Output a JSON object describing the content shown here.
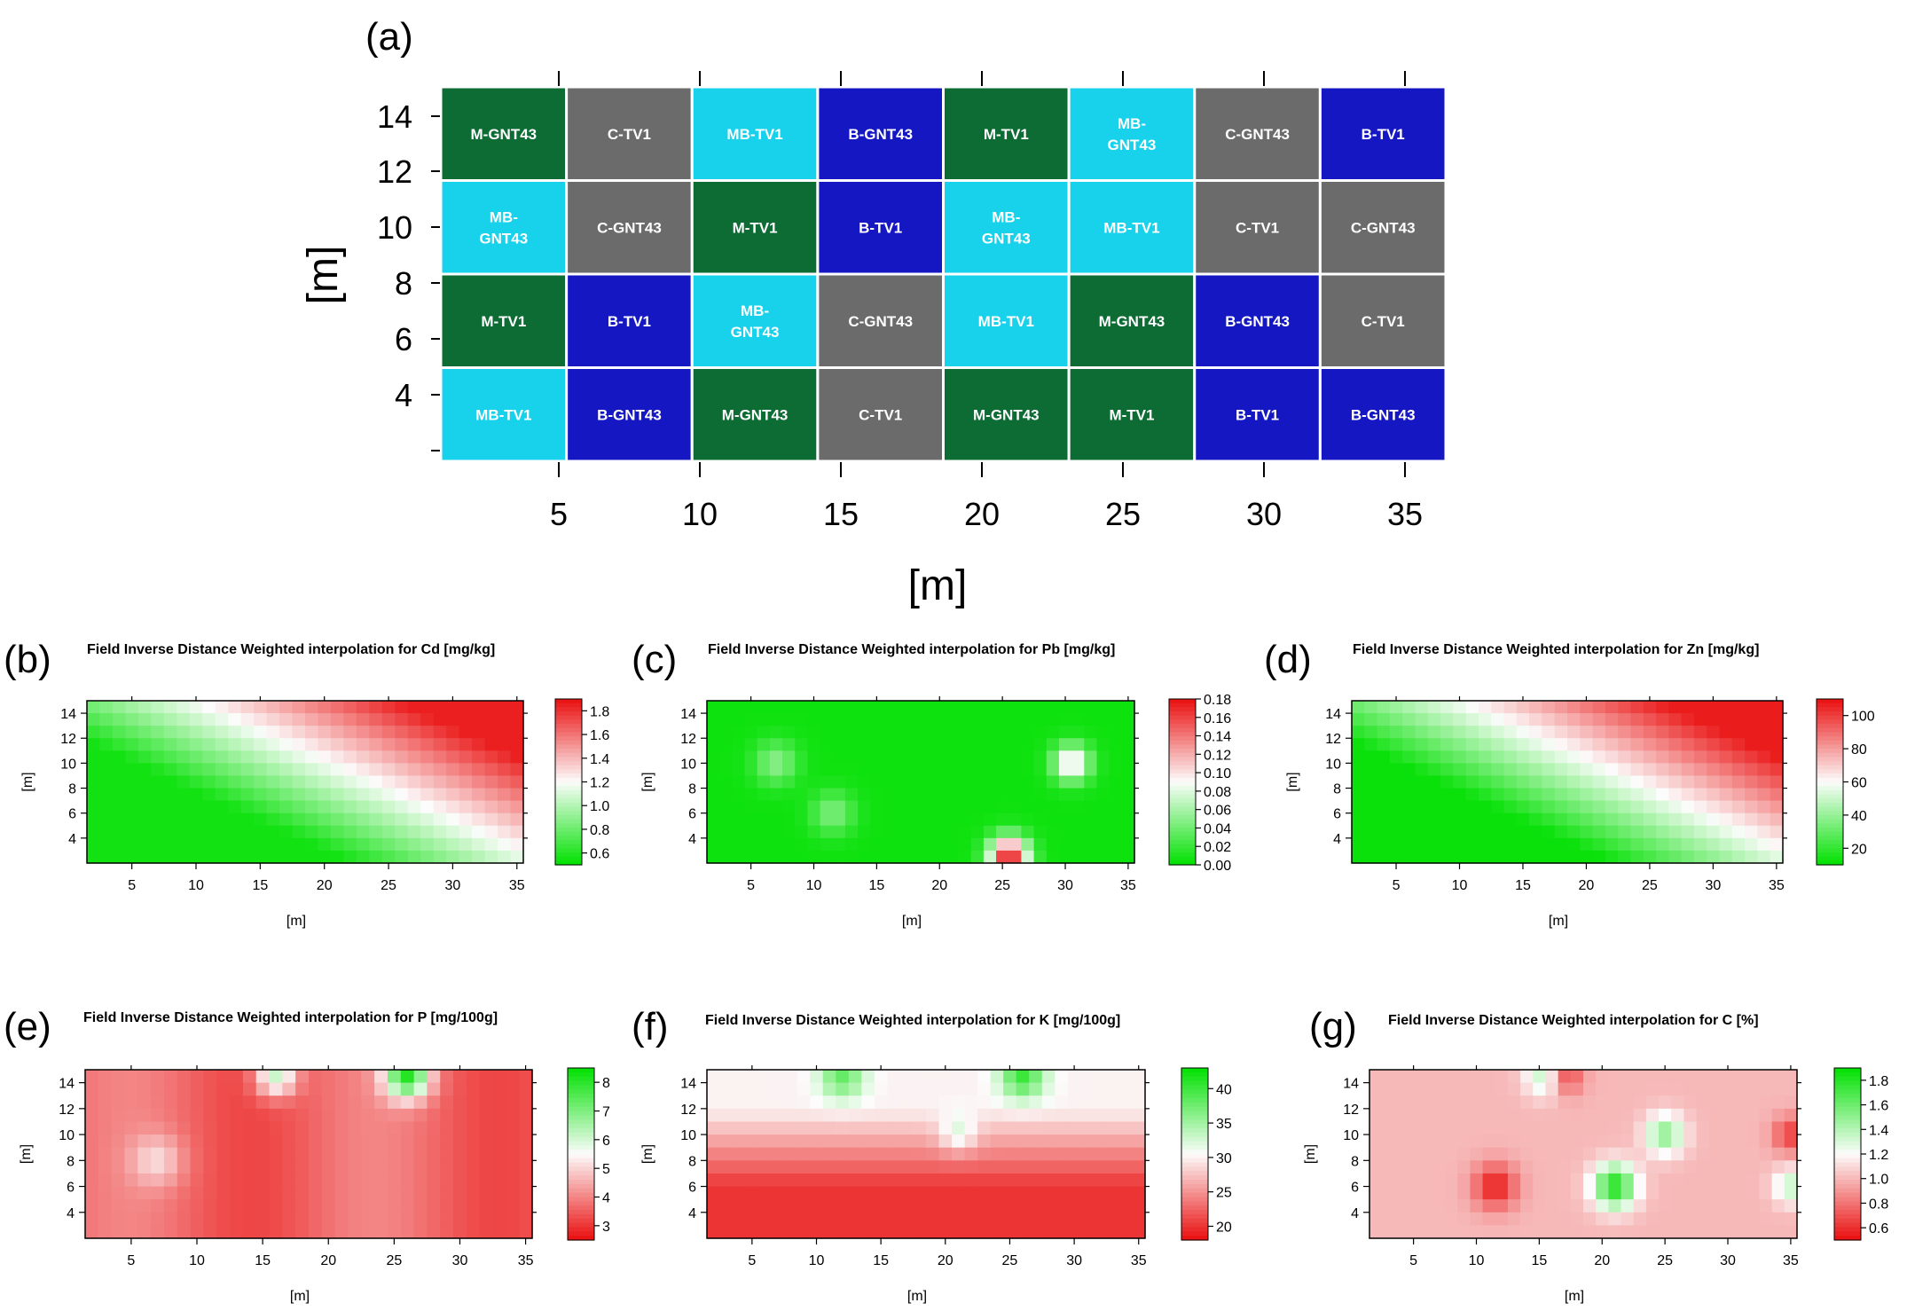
{
  "chart_data": [
    {
      "panel": "(a)",
      "type": "heatmap",
      "title": "",
      "xlabel": "[m]",
      "ylabel": "[m]",
      "xticks": [
        "5",
        "10",
        "15",
        "20",
        "25",
        "30",
        "35"
      ],
      "yticks": [
        "14",
        "12",
        "10",
        "8",
        "6",
        "4"
      ],
      "colors": {
        "M": "#0d6b34",
        "C": "#6b6b6b",
        "MB": "#18d1eb",
        "B": "#1517c3"
      },
      "rows": [
        [
          "M-GNT43",
          "C-TV1",
          "MB-TV1",
          "B-GNT43",
          "M-TV1",
          "MB-GNT43",
          "C-GNT43",
          "B-TV1"
        ],
        [
          "MB-GNT43",
          "C-GNT43",
          "M-TV1",
          "B-TV1",
          "MB-GNT43",
          "MB-TV1",
          "C-TV1",
          "C-GNT43"
        ],
        [
          "M-TV1",
          "B-TV1",
          "MB-GNT43",
          "C-GNT43",
          "MB-TV1",
          "M-GNT43",
          "B-GNT43",
          "C-TV1"
        ],
        [
          "MB-TV1",
          "B-GNT43",
          "M-GNT43",
          "C-TV1",
          "M-GNT43",
          "M-TV1",
          "B-TV1",
          "B-GNT43"
        ]
      ],
      "multiline_labels": {
        "MB-GNT43": [
          "MB-",
          "GNT43"
        ]
      }
    },
    {
      "panel": "(b)",
      "type": "heatmap",
      "title": "Field Inverse Distance Weighted interpolation for Cd [mg/kg]",
      "xlabel": "[m]",
      "ylabel": "[m]",
      "xticks": [
        "5",
        "10",
        "15",
        "20",
        "25",
        "30",
        "35"
      ],
      "yticks": [
        "14",
        "12",
        "10",
        "8",
        "6",
        "4"
      ],
      "colorbar": [
        "1.8",
        "1.6",
        "1.4",
        "1.2",
        "1.0",
        "0.8",
        "0.6"
      ],
      "colorbar_direction": "high-red",
      "zlim": [
        0.5,
        1.9
      ]
    },
    {
      "panel": "(c)",
      "type": "heatmap",
      "title": "Field Inverse Distance Weighted interpolation for Pb [mg/kg]",
      "xlabel": "[m]",
      "ylabel": "[m]",
      "xticks": [
        "5",
        "10",
        "15",
        "20",
        "25",
        "30",
        "35"
      ],
      "yticks": [
        "14",
        "12",
        "10",
        "8",
        "6",
        "4"
      ],
      "colorbar": [
        "0.18",
        "0.16",
        "0.14",
        "0.12",
        "0.10",
        "0.08",
        "0.06",
        "0.04",
        "0.02",
        "0.00"
      ],
      "colorbar_direction": "high-red",
      "zlim": [
        0.0,
        0.18
      ]
    },
    {
      "panel": "(d)",
      "type": "heatmap",
      "title": "Field Inverse Distance Weighted interpolation for Zn [mg/kg]",
      "xlabel": "[m]",
      "ylabel": "[m]",
      "xticks": [
        "5",
        "10",
        "15",
        "20",
        "25",
        "30",
        "35"
      ],
      "yticks": [
        "14",
        "12",
        "10",
        "8",
        "6",
        "4"
      ],
      "colorbar": [
        "100",
        "80",
        "60",
        "40",
        "20"
      ],
      "colorbar_direction": "high-red",
      "zlim": [
        10,
        110
      ]
    },
    {
      "panel": "(e)",
      "type": "heatmap",
      "title": "Field Inverse Distance Weighted interpolation for P [mg/100g]",
      "xlabel": "[m]",
      "ylabel": "[m]",
      "xticks": [
        "5",
        "10",
        "15",
        "20",
        "25",
        "30",
        "35"
      ],
      "yticks": [
        "14",
        "12",
        "10",
        "8",
        "6",
        "4"
      ],
      "colorbar": [
        "8",
        "7",
        "6",
        "5",
        "4",
        "3"
      ],
      "colorbar_direction": "high-green",
      "zlim": [
        2.5,
        8.5
      ]
    },
    {
      "panel": "(f)",
      "type": "heatmap",
      "title": "Field Inverse Distance Weighted interpolation for K [mg/100g]",
      "xlabel": "[m]",
      "ylabel": "[m]",
      "xticks": [
        "5",
        "10",
        "15",
        "20",
        "25",
        "30",
        "35"
      ],
      "yticks": [
        "14",
        "12",
        "10",
        "8",
        "6",
        "4"
      ],
      "colorbar": [
        "40",
        "35",
        "30",
        "25",
        "20"
      ],
      "colorbar_direction": "high-green",
      "zlim": [
        18,
        43
      ]
    },
    {
      "panel": "(g)",
      "type": "heatmap",
      "title": "Field Inverse Distance Weighted interpolation for C [%]",
      "xlabel": "[m]",
      "ylabel": "[m]",
      "xticks": [
        "5",
        "10",
        "15",
        "20",
        "25",
        "30",
        "35"
      ],
      "yticks": [
        "14",
        "12",
        "10",
        "8",
        "6",
        "4"
      ],
      "colorbar": [
        "1.8",
        "1.6",
        "1.4",
        "1.2",
        "1.0",
        "0.8",
        "0.6"
      ],
      "colorbar_direction": "high-green",
      "zlim": [
        0.5,
        1.9
      ]
    }
  ]
}
